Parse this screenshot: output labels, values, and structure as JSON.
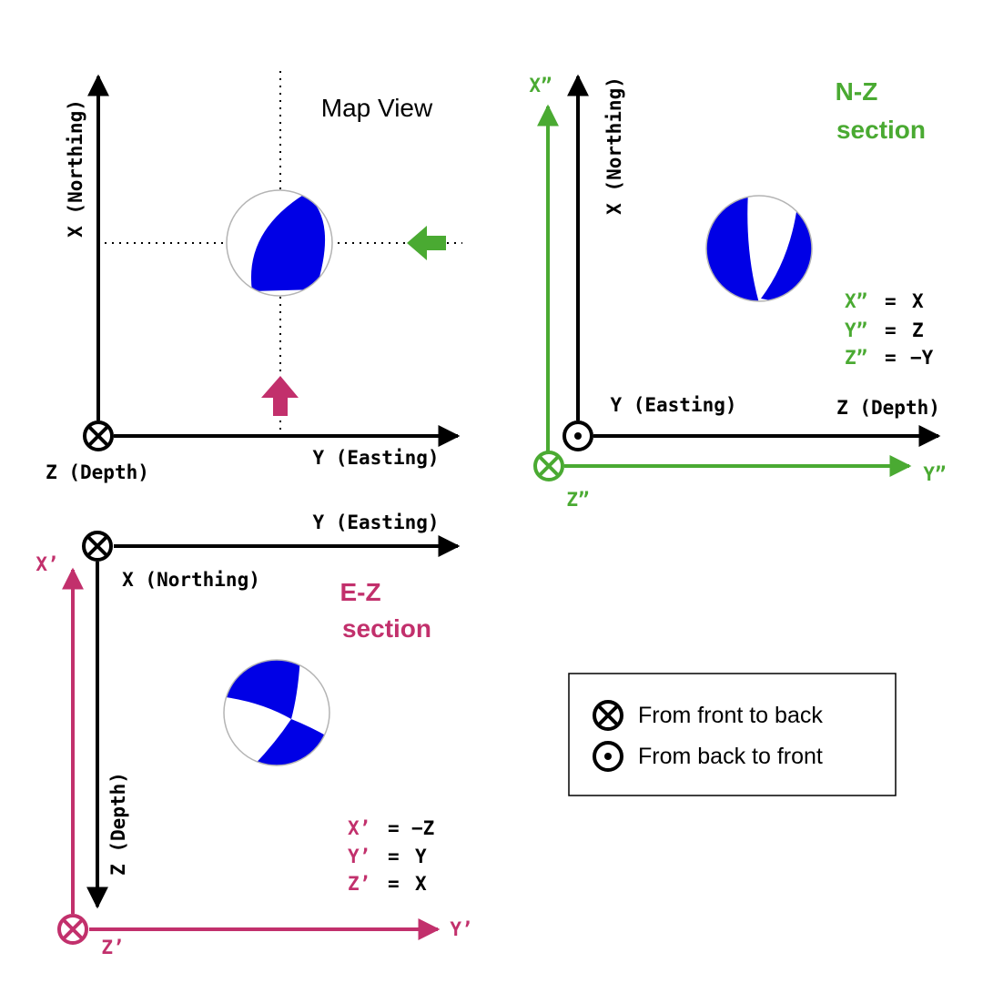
{
  "colors": {
    "black": "#000000",
    "green": "#4aaa32",
    "magenta": "#c2306c",
    "beachball_fill": "#0000e6",
    "beachball_outline": "#b4b4b4"
  },
  "map_view": {
    "title": "Map View",
    "x_axis_label": "Y (Easting)",
    "y_axis_label": "X (Northing)",
    "origin_label": "Z (Depth)",
    "origin_symbol": "into-page-icon"
  },
  "nz_section": {
    "title_line1": "N-Z",
    "title_line2": "section",
    "vertical_label": "X (Northing)",
    "inner_label_left": "Y (Easting)",
    "inner_label_right": "Z (Depth)",
    "green_vertical_label": "X”",
    "green_horizontal_label": "Y”",
    "green_origin_label": "Z”",
    "equations": [
      {
        "lhs": "X”",
        "op": "=",
        "rhs": "X"
      },
      {
        "lhs": "Y”",
        "op": "=",
        "rhs": "Z"
      },
      {
        "lhs": "Z”",
        "op": "=",
        "rhs": "−Y"
      }
    ]
  },
  "ez_section": {
    "title_line1": "E-Z",
    "title_line2": "section",
    "top_axis_label": "Y (Easting)",
    "origin_label": "X (Northing)",
    "vertical_label": "Z (Depth)",
    "magenta_vertical_label": "X’",
    "magenta_horizontal_label": "Y’",
    "magenta_origin_label": "Z’",
    "equations": [
      {
        "lhs": "X’",
        "op": "=",
        "rhs": "−Z"
      },
      {
        "lhs": "Y’",
        "op": "=",
        "rhs": "Y"
      },
      {
        "lhs": "Z’",
        "op": "=",
        "rhs": "X"
      }
    ]
  },
  "legend": {
    "items": [
      {
        "icon": "into-page-icon",
        "label": "From front to back"
      },
      {
        "icon": "out-of-page-icon",
        "label": "From back to front"
      }
    ]
  }
}
